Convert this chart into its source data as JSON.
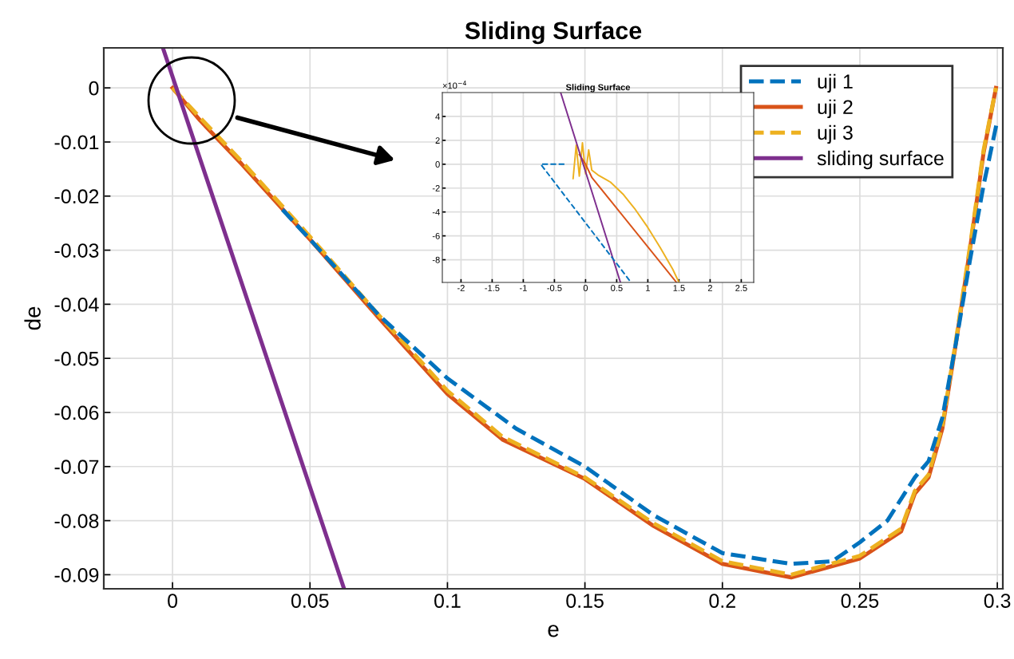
{
  "chart_data": [
    {
      "type": "line",
      "title": "Sliding Surface",
      "xlabel": "e",
      "ylabel": "de",
      "xlim": [
        -0.025,
        0.302
      ],
      "ylim": [
        -0.0926,
        0.0074
      ],
      "xticks": [
        0,
        0.05,
        0.1,
        0.15,
        0.2,
        0.25,
        0.3
      ],
      "yticks": [
        0,
        -0.01,
        -0.02,
        -0.03,
        -0.04,
        -0.05,
        -0.06,
        -0.07,
        -0.08,
        -0.09
      ],
      "grid": true,
      "legend": "top right",
      "series": [
        {
          "name": "uji 1",
          "color": "#0072bd",
          "line_style": "dashed",
          "x": [
            0.04,
            0.05,
            0.075,
            0.1,
            0.125,
            0.15,
            0.175,
            0.2,
            0.225,
            0.24,
            0.25,
            0.26,
            0.27,
            0.275,
            0.28,
            0.285,
            0.29,
            0.295,
            0.3
          ],
          "values": [
            -0.0225,
            -0.028,
            -0.042,
            -0.0537,
            -0.063,
            -0.07,
            -0.079,
            -0.086,
            -0.088,
            -0.0875,
            -0.084,
            -0.08,
            -0.072,
            -0.069,
            -0.061,
            -0.047,
            -0.032,
            -0.018,
            -0.006
          ]
        },
        {
          "name": "uji 2",
          "color": "#d95319",
          "line_style": "solid",
          "x": [
            0,
            0.01,
            0.025,
            0.05,
            0.075,
            0.1,
            0.12,
            0.15,
            0.175,
            0.2,
            0.225,
            0.25,
            0.265,
            0.27,
            0.275,
            0.28,
            0.285,
            0.29,
            0.295,
            0.2995
          ],
          "values": [
            0,
            -0.006,
            -0.014,
            -0.028,
            -0.0425,
            -0.0566,
            -0.065,
            -0.0723,
            -0.081,
            -0.088,
            -0.0905,
            -0.087,
            -0.082,
            -0.075,
            -0.072,
            -0.063,
            -0.047,
            -0.03,
            -0.012,
            0
          ]
        },
        {
          "name": "uji 3",
          "color": "#edb120",
          "line_style": "dashed",
          "x": [
            0,
            0.01,
            0.025,
            0.05,
            0.075,
            0.1,
            0.12,
            0.15,
            0.175,
            0.2,
            0.225,
            0.25,
            0.265,
            0.27,
            0.275,
            0.28,
            0.285,
            0.29,
            0.295,
            0.2995
          ],
          "values": [
            0,
            -0.0055,
            -0.0135,
            -0.0275,
            -0.042,
            -0.056,
            -0.0645,
            -0.072,
            -0.0805,
            -0.0875,
            -0.09,
            -0.0865,
            -0.0815,
            -0.0745,
            -0.0715,
            -0.0625,
            -0.0465,
            -0.0295,
            -0.0115,
            0
          ]
        },
        {
          "name": "sliding surface",
          "color": "#7e2f8e",
          "line_style": "solid",
          "x": [
            -0.0035,
            0.0624
          ],
          "values": [
            0.0074,
            -0.0926
          ]
        }
      ]
    },
    {
      "type": "line",
      "title": "Sliding Surface",
      "xlim": [
        -2.3,
        2.7
      ],
      "ylim": [
        -9.9,
        6
      ],
      "xticks": [
        -2,
        -1.5,
        -1,
        -0.5,
        0,
        0.5,
        1,
        1.5,
        2,
        2.5
      ],
      "yticks": [
        -8,
        -6,
        -4,
        -2,
        0,
        2,
        4
      ],
      "grid": true,
      "annotations": [
        "×10$^{−4}$"
      ],
      "series": [
        {
          "color": "#0072bd",
          "line_style": "dashed",
          "x": [
            -0.34,
            -0.72,
            0.73
          ],
          "values": [
            0,
            0,
            -9.9
          ]
        },
        {
          "color": "#edb120",
          "line_style": "solid",
          "x": [
            -0.2,
            -0.15,
            -0.1,
            -0.05,
            0,
            0.05,
            0.1,
            0.2,
            0.4,
            0.6,
            0.8,
            1.0,
            1.2,
            1.4,
            1.5
          ],
          "values": [
            -1.2,
            1.6,
            -1.0,
            1.8,
            -0.8,
            1.2,
            -0.5,
            -0.9,
            -1.5,
            -2.5,
            -3.8,
            -5.3,
            -7.0,
            -8.8,
            -9.9
          ]
        },
        {
          "color": "#d95319",
          "line_style": "solid",
          "x": [
            -0.1,
            0,
            0.1,
            1.46
          ],
          "values": [
            0.8,
            0,
            -1.1,
            -9.9
          ]
        },
        {
          "color": "#7e2f8e",
          "line_style": "solid",
          "x": [
            -0.4,
            0.56
          ],
          "values": [
            6,
            -9.9
          ]
        }
      ]
    }
  ]
}
